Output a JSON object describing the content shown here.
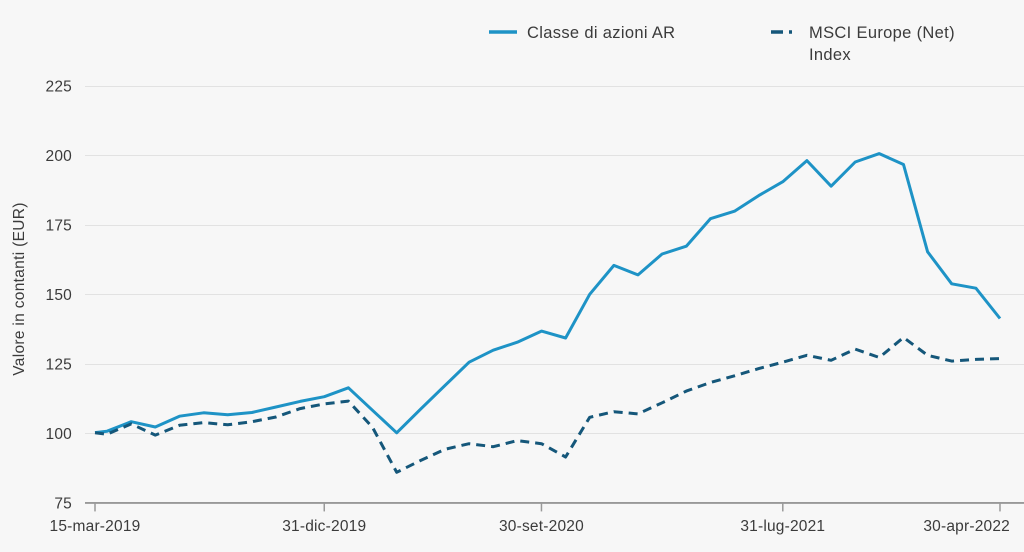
{
  "legend": [
    {
      "label": "Classe di azioni AR",
      "color": "#1e93c6",
      "style": "solid"
    },
    {
      "label": "MSCI Europe (Net) Index",
      "color": "#15577a",
      "style": "dash-dot"
    }
  ],
  "colors": {
    "background": "#f7f7f7",
    "text": "#3b3b3b",
    "gridline": "#e2e2e2",
    "axis": "#999999",
    "fund_line": "#1e93c6",
    "benchmark_line": "#15577a"
  },
  "chart_data": {
    "type": "line",
    "title": "",
    "xlabel": "",
    "ylabel": "Valore in contanti (EUR)",
    "ylim": [
      75,
      225
    ],
    "grid": "horizontal",
    "legend_position": "top",
    "y_ticks": [
      225,
      200,
      175,
      150,
      125,
      100,
      75
    ],
    "x_tick_marks": [
      {
        "label": "15-mar-2019",
        "t": 0
      },
      {
        "label": "31-dic-2019",
        "t": 9.5
      },
      {
        "label": "30-set-2020",
        "t": 18.5
      },
      {
        "label": "31-lug-2021",
        "t": 28.5
      },
      {
        "label": "30-apr-2022",
        "t": 37.5
      }
    ],
    "x": [
      "15-mar-2019",
      "31-mar-2019",
      "30-apr-2019",
      "31-mag-2019",
      "30-giu-2019",
      "31-lug-2019",
      "31-ago-2019",
      "30-set-2019",
      "31-ott-2019",
      "30-nov-2019",
      "31-dic-2019",
      "31-gen-2020",
      "29-feb-2020",
      "31-mar-2020",
      "30-apr-2020",
      "31-mag-2020",
      "30-giu-2020",
      "31-lug-2020",
      "31-ago-2020",
      "30-set-2020",
      "31-ott-2020",
      "30-nov-2020",
      "31-dic-2020",
      "31-gen-2021",
      "28-feb-2021",
      "31-mar-2021",
      "30-apr-2021",
      "31-mag-2021",
      "30-giu-2021",
      "31-lug-2021",
      "31-ago-2021",
      "30-set-2021",
      "31-ott-2021",
      "30-nov-2021",
      "31-dic-2021",
      "31-gen-2022",
      "28-feb-2022",
      "31-mar-2022",
      "30-apr-2022"
    ],
    "t": [
      0,
      0.5,
      1.5,
      2.5,
      3.5,
      4.5,
      5.5,
      6.5,
      7.5,
      8.5,
      9.5,
      10.5,
      11.5,
      12.5,
      13.5,
      14.5,
      15.5,
      16.5,
      17.5,
      18.5,
      19.5,
      20.5,
      21.5,
      22.5,
      23.5,
      24.5,
      25.5,
      26.5,
      27.5,
      28.5,
      29.5,
      30.5,
      31.5,
      32.5,
      33.5,
      34.5,
      35.5,
      36.5,
      37.5
    ],
    "series": [
      {
        "name": "Classe di azioni AR",
        "color": "#1e93c6",
        "dash": "solid",
        "values": [
          100.3,
          100.8,
          104.2,
          102.3,
          106.2,
          107.4,
          106.7,
          107.5,
          109.5,
          111.5,
          113.2,
          116.4,
          108.3,
          100.2,
          108.8,
          117.2,
          125.6,
          129.9,
          132.8,
          136.8,
          134.3,
          150.0,
          160.4,
          157.0,
          164.5,
          167.3,
          177.2,
          179.9,
          185.5,
          190.5,
          198.1,
          188.9,
          197.6,
          200.6,
          196.7,
          165.3,
          153.8,
          152.2,
          141.3
        ]
      },
      {
        "name": "MSCI Europe (Net) Index",
        "color": "#15577a",
        "dash": "dashed",
        "values": [
          100.2,
          99.7,
          103.4,
          99.4,
          102.9,
          103.9,
          103.1,
          104.2,
          105.9,
          108.9,
          110.6,
          111.6,
          102.2,
          86.0,
          90.3,
          94.3,
          96.3,
          95.2,
          97.4,
          96.3,
          91.5,
          105.8,
          107.8,
          107.0,
          111.0,
          115.2,
          118.3,
          120.7,
          123.3,
          125.6,
          128.1,
          126.3,
          130.3,
          127.3,
          134.5,
          128.1,
          126.0,
          126.6,
          126.9
        ]
      }
    ]
  }
}
